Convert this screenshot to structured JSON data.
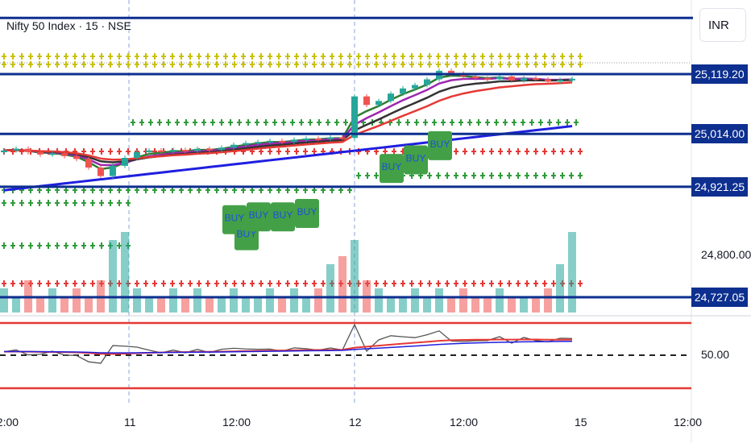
{
  "header": {
    "symbol_title": "Nifty 50 Index · 15 · NSE",
    "currency": "INR"
  },
  "price_axis": {
    "labels": [
      "25,119.20",
      "25,014.00",
      "24,921.25",
      "24,727.05"
    ],
    "levels": [
      25119.2,
      25014.0,
      24921.25,
      24727.05
    ],
    "top_level": 25218,
    "tick": "24,800.00",
    "oscillator_tick": "50.00"
  },
  "time_axis": {
    "labels": [
      "12:00",
      "11",
      "12:00",
      "12",
      "12:00",
      "15",
      "12:00"
    ]
  },
  "colors": {
    "level": "#0d2f8f",
    "up": "#26a69a",
    "down": "#ef5350",
    "buy_box": "#43a047",
    "buy_text": "#1e50d8",
    "ma_blue": "#1f1fe0",
    "ma_red": "#e53935",
    "ma_purple": "#9c27b0",
    "ma_green": "#2e7d32",
    "ma_black": "#333333",
    "cross_yellow": "#c8c000",
    "cross_green": "#2e9b3a",
    "cross_red": "#e53935",
    "osc_band": "#e53935"
  },
  "buy_signal_label": "BUY",
  "chart_data": {
    "type": "candlestick",
    "closes": [
      24985,
      24988,
      24982,
      24978,
      24980,
      24975,
      24970,
      24955,
      24940,
      24958,
      24972,
      24982,
      24985,
      24983,
      24986,
      24984,
      24988,
      24986,
      24990,
      24995,
      24998,
      25000,
      25002,
      25000,
      25004,
      25006,
      25005,
      25008,
      25007,
      25080,
      25065,
      25072,
      25085,
      25094,
      25100,
      25110,
      25125,
      25120,
      25115,
      25112,
      25110,
      25115,
      25108,
      25112,
      25110,
      25106,
      25109,
      25111
    ],
    "volumes": [
      3,
      2,
      4,
      2,
      3,
      2,
      3,
      2,
      4,
      9,
      10,
      3,
      2,
      2,
      3,
      2,
      3,
      2,
      2,
      3,
      2,
      2,
      3,
      2,
      3,
      2,
      3,
      6,
      7,
      9,
      4,
      3,
      2,
      2,
      3,
      2,
      3,
      2,
      3,
      2,
      2,
      3,
      2,
      2,
      2,
      3,
      6,
      10
    ],
    "buy_signals": [
      19,
      20,
      21,
      23,
      25,
      32,
      34,
      36
    ]
  }
}
